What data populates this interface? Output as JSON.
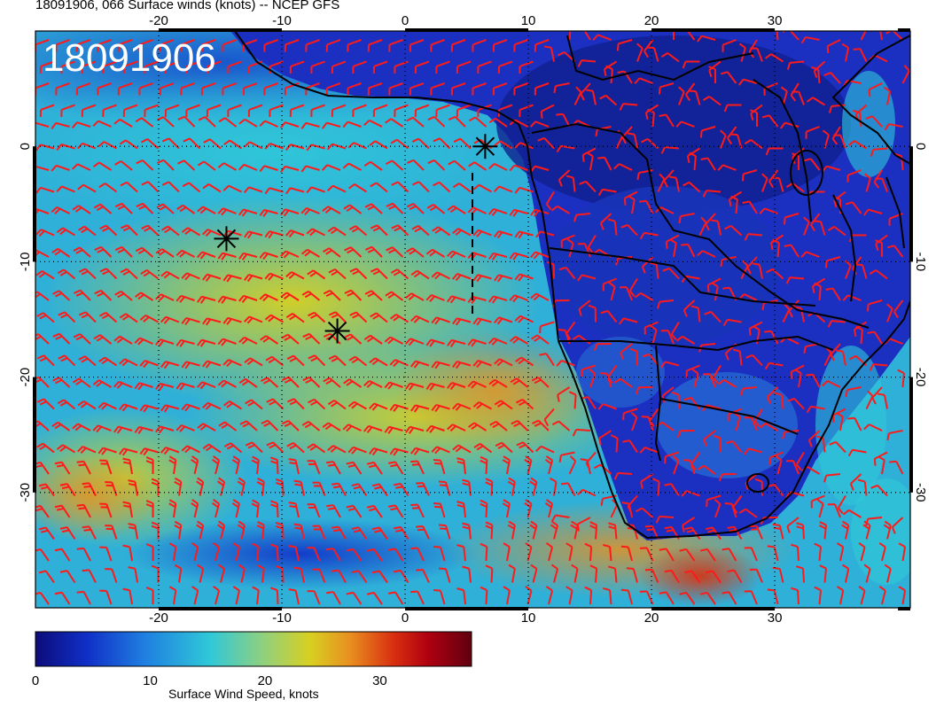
{
  "title": "18091906, 066 Surface winds (knots) -- NCEP GFS",
  "time_stamp": "18091906",
  "map": {
    "lon_range": [
      -30,
      41
    ],
    "lat_range": [
      -40,
      10
    ],
    "top_lon_ticks": [
      "-20",
      "-10",
      "0",
      "10",
      "20",
      "30"
    ],
    "bottom_lon_ticks": [
      "-20",
      "-10",
      "0",
      "10",
      "20",
      "30"
    ],
    "left_lat_ticks": [
      "0",
      "-10",
      "-20",
      "-30"
    ],
    "right_lat_ticks": [
      "0",
      "-10",
      "-20",
      "-30"
    ],
    "barb_color": "#ff1a1a",
    "coast_color": "#000000",
    "markers": [
      {
        "lon": 6.5,
        "lat": 0
      },
      {
        "lon": -14.5,
        "lat": -8
      },
      {
        "lon": -5.5,
        "lat": -16
      }
    ]
  },
  "colorbar": {
    "title": "Surface Wind Speed, knots",
    "ticks": [
      "0",
      "10",
      "20",
      "30"
    ],
    "range": [
      0,
      38
    ],
    "colors": [
      "#0c0c7a",
      "#1030c8",
      "#1f7fe0",
      "#2fc8d8",
      "#8ed080",
      "#d8d020",
      "#e89020",
      "#d83010",
      "#b00010",
      "#600010"
    ]
  }
}
